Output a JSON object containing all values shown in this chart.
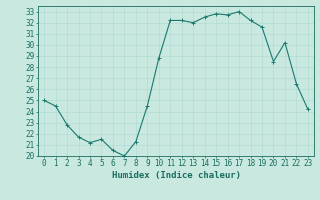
{
  "x": [
    0,
    1,
    2,
    3,
    4,
    5,
    6,
    7,
    8,
    9,
    10,
    11,
    12,
    13,
    14,
    15,
    16,
    17,
    18,
    19,
    20,
    21,
    22,
    23
  ],
  "y": [
    25.0,
    24.5,
    22.8,
    21.7,
    21.2,
    21.5,
    20.5,
    20.0,
    21.3,
    24.5,
    28.8,
    32.2,
    32.2,
    32.0,
    32.5,
    32.8,
    32.7,
    33.0,
    32.2,
    31.6,
    28.5,
    30.2,
    26.5,
    24.2
  ],
  "line_color": "#1a7a6e",
  "marker": "+",
  "marker_size": 3,
  "xlabel": "Humidex (Indice chaleur)",
  "xlim": [
    -0.5,
    23.5
  ],
  "ylim": [
    20,
    33.5
  ],
  "yticks": [
    20,
    21,
    22,
    23,
    24,
    25,
    26,
    27,
    28,
    29,
    30,
    31,
    32,
    33
  ],
  "xticks": [
    0,
    1,
    2,
    3,
    4,
    5,
    6,
    7,
    8,
    9,
    10,
    11,
    12,
    13,
    14,
    15,
    16,
    17,
    18,
    19,
    20,
    21,
    22,
    23
  ],
  "bg_color": "#c8e8e0",
  "grid_color": "#b0d8d0",
  "line_dark": "#1a6e60",
  "tick_color": "#1a6e60",
  "font_size": 5.5,
  "xlabel_fontsize": 6.5
}
